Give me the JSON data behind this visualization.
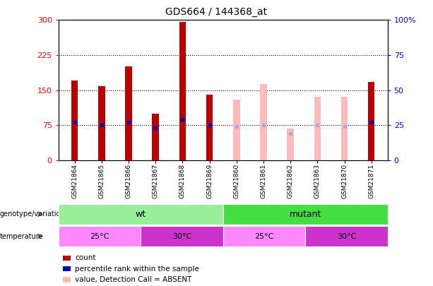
{
  "title": "GDS664 / 144368_at",
  "samples": [
    "GSM21864",
    "GSM21865",
    "GSM21866",
    "GSM21867",
    "GSM21868",
    "GSM21869",
    "GSM21860",
    "GSM21861",
    "GSM21862",
    "GSM21863",
    "GSM21870",
    "GSM21871"
  ],
  "count_values": [
    170,
    158,
    200,
    100,
    296,
    140,
    null,
    null,
    null,
    null,
    null,
    168
  ],
  "percentile_values": [
    27,
    25,
    27,
    23,
    29,
    25,
    null,
    null,
    null,
    null,
    null,
    27
  ],
  "absent_count_values": [
    null,
    null,
    null,
    null,
    null,
    null,
    130,
    163,
    68,
    135,
    135,
    null
  ],
  "absent_rank_values": [
    null,
    null,
    null,
    null,
    null,
    null,
    24,
    25,
    19,
    25,
    24,
    null
  ],
  "ylim_left": [
    0,
    300
  ],
  "ylim_right": [
    0,
    100
  ],
  "yticks_left": [
    0,
    75,
    150,
    225,
    300
  ],
  "yticks_right": [
    0,
    25,
    50,
    75,
    100
  ],
  "ytick_labels_left": [
    "0",
    "75",
    "150",
    "225",
    "300"
  ],
  "ytick_labels_right": [
    "0",
    "25",
    "50",
    "75",
    "100%"
  ],
  "genotype_wt_color": "#99EE99",
  "genotype_mutant_color": "#44DD44",
  "temp_25_color": "#FF88FF",
  "temp_30_color": "#CC33CC",
  "bar_color_present": "#BB0000",
  "bar_color_absent": "#FFBBBB",
  "dot_color_present": "#0000BB",
  "dot_color_absent": "#AAAADD",
  "grid_color": "#000000",
  "bg_color": "#FFFFFF",
  "plot_bg": "#FFFFFF"
}
